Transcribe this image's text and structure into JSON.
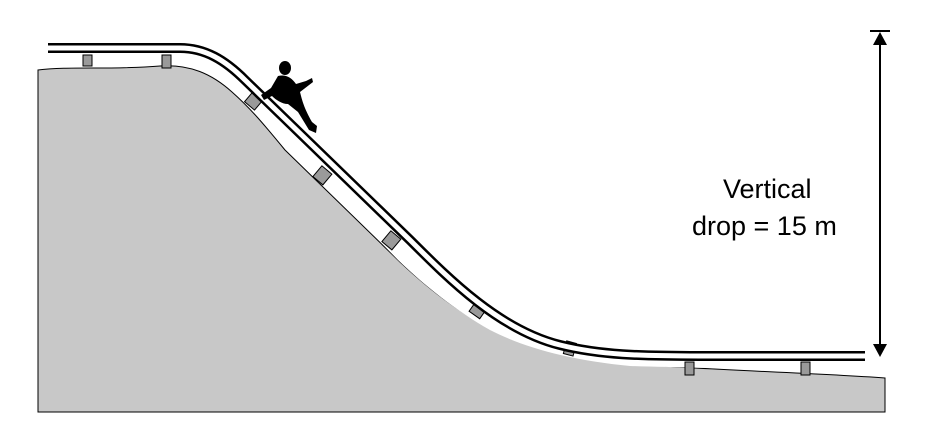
{
  "labels": {
    "line1": "Vertical",
    "line2": "drop = 15 m"
  },
  "colors": {
    "ground": "#c8c8c8",
    "rail": "#000000",
    "support": "#9a9a9a",
    "person": "#000000",
    "background": "#ffffff"
  }
}
